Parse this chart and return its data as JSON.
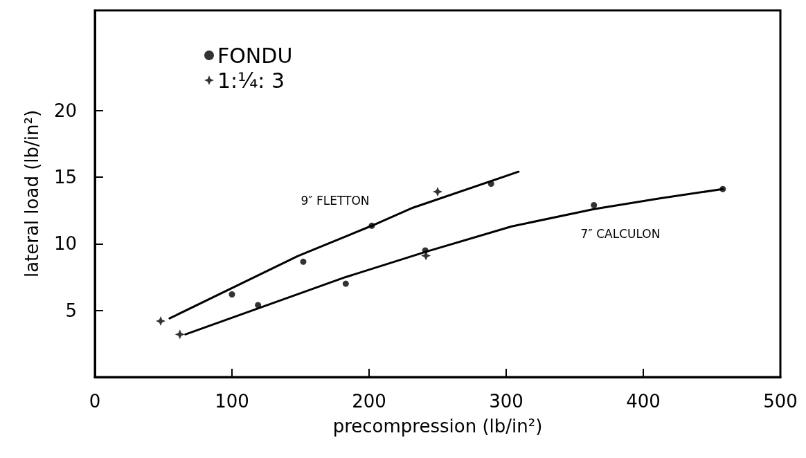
{
  "chart_data": {
    "type": "scatter",
    "xlabel": "precompression (lb/in²)",
    "ylabel": "lateral load (lb/in²)",
    "xlim": [
      0,
      500
    ],
    "xticks": [
      0,
      100,
      200,
      300,
      400,
      500
    ],
    "ylim": [
      0,
      27.5
    ],
    "yticks": [
      5,
      10,
      15,
      20
    ],
    "grid": false,
    "legend": "top left",
    "series": [
      {
        "name": "FONDU",
        "marker": "circle",
        "color": "#000000",
        "x": [
          100,
          119,
          152,
          183,
          202,
          241,
          289,
          364,
          458
        ],
        "values": [
          6.2,
          5.4,
          8.65,
          7.0,
          11.35,
          9.5,
          14.5,
          12.9,
          14.1
        ]
      },
      {
        "name": "1:¼: 3",
        "marker": "star",
        "color": "#000000",
        "x": [
          48,
          62,
          241.5,
          250
        ],
        "values": [
          4.2,
          3.2,
          9.1,
          13.9
        ]
      },
      {
        "type": "line",
        "marker": "none",
        "line_style": "solid",
        "color": "#000000",
        "x": [
          54.5,
          148,
          202,
          232,
          309
        ],
        "values": [
          4.4,
          9.07,
          11.35,
          12.7,
          15.4
        ]
      },
      {
        "type": "line",
        "marker": "none",
        "line_style": "solid",
        "color": "#000000",
        "x": [
          66,
          183,
          241.5,
          304,
          364,
          412,
          458
        ],
        "values": [
          3.2,
          7.5,
          9.4,
          11.3,
          12.6,
          13.4,
          14.1
        ]
      }
    ],
    "annotations": [
      "9″ FLETTON",
      "7″ CALCULON"
    ]
  }
}
